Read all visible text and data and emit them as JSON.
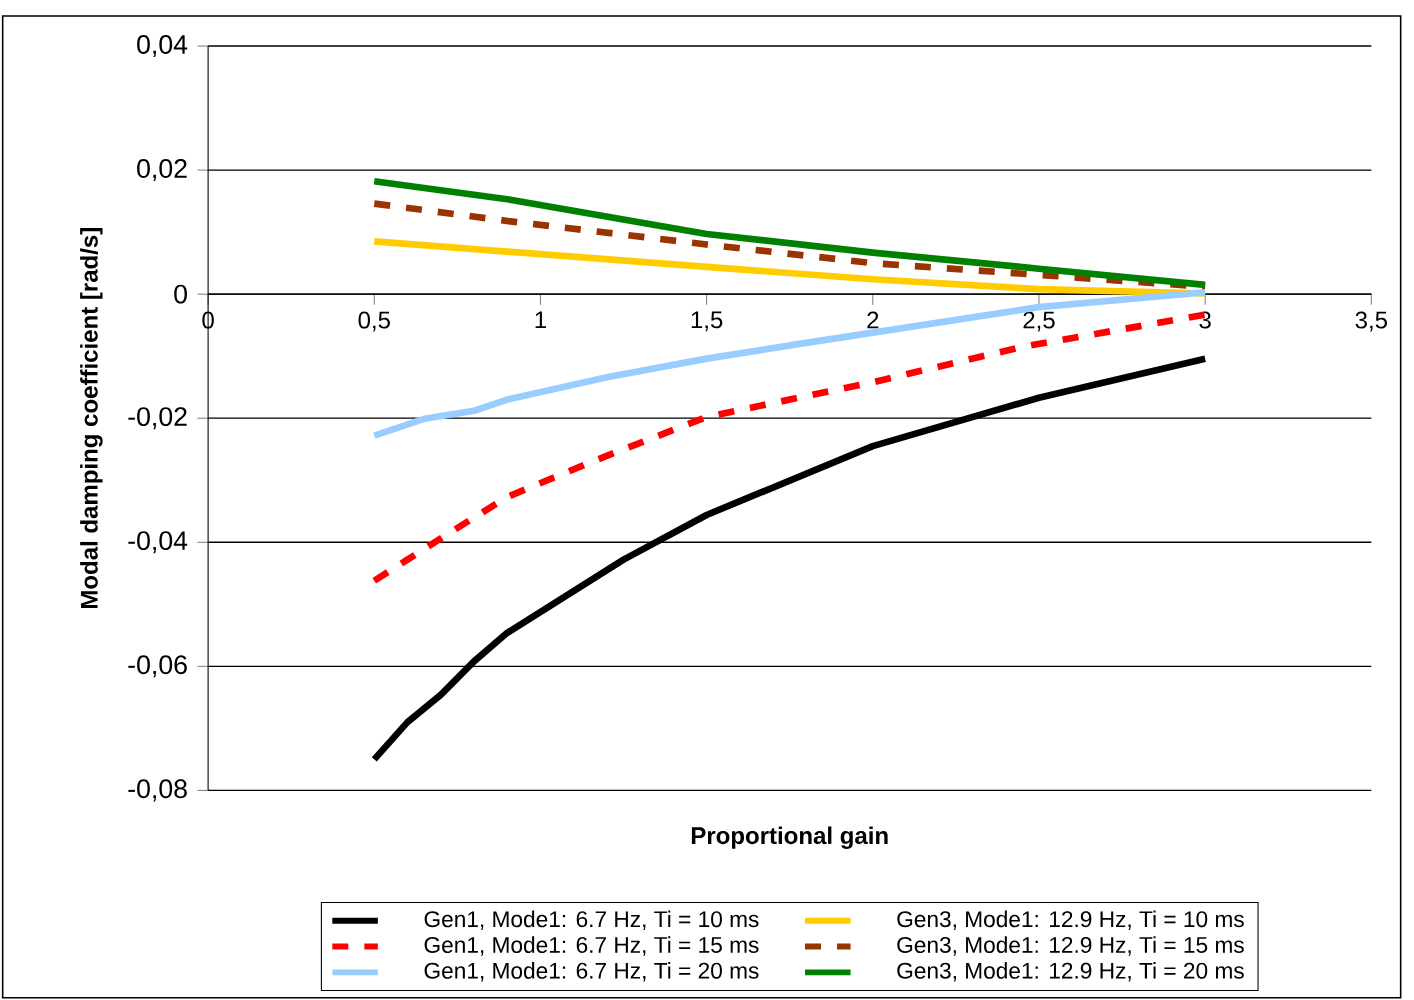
{
  "chart_data": {
    "type": "line",
    "xlabel": "Proportional gain",
    "ylabel": "Modal damping coefficient [rad/s]",
    "xlim": [
      0,
      3.5
    ],
    "ylim": [
      -0.08,
      0.04
    ],
    "xticks": [
      0,
      {
        "value": 0.5,
        "label": "0,5"
      },
      1,
      {
        "value": 1.5,
        "label": "1,5"
      },
      2,
      {
        "value": 2.5,
        "label": "2,5"
      },
      3,
      {
        "value": 3.5,
        "label": "3,5"
      }
    ],
    "yticks": [
      {
        "value": -0.08,
        "label": "-0,08"
      },
      {
        "value": -0.06,
        "label": "-0,06"
      },
      {
        "value": -0.04,
        "label": "-0,04"
      },
      {
        "value": -0.02,
        "label": "-0,02"
      },
      0,
      {
        "value": 0.02,
        "label": "0,02"
      },
      {
        "value": 0.04,
        "label": "0,04"
      }
    ],
    "grid": "y",
    "legend": "bottom",
    "marker": "none",
    "series": [
      {
        "name": "Gen1, Mode1: 6.7 Hz, Ti = 10 ms",
        "color": "#000000",
        "line_style": "solid",
        "x": [
          0.5,
          0.6,
          0.7,
          0.8,
          0.9,
          1.25,
          1.5,
          2,
          2.5,
          3
        ],
        "values": [
          -0.075,
          -0.069,
          -0.0646,
          -0.0592,
          -0.0546,
          -0.0428,
          -0.0356,
          -0.0245,
          -0.0167,
          -0.0104
        ]
      },
      {
        "name": "Gen1, Mode1: 6.7 Hz, Ti = 15 ms",
        "color": "#ff0000",
        "line_style": "dashed",
        "x": [
          0.5,
          0.6,
          0.72,
          0.9,
          1.16,
          1.5,
          2,
          2.45,
          3
        ],
        "values": [
          -0.0462,
          -0.0428,
          -0.0387,
          -0.0327,
          -0.0269,
          -0.0198,
          -0.0142,
          -0.0085,
          -0.0033
        ]
      },
      {
        "name": "Gen1, Mode1: 6.7 Hz, Ti = 20 ms",
        "color": "#99ccff",
        "line_style": "solid",
        "x": [
          0.5,
          0.65,
          0.8,
          0.9,
          1.2,
          1.5,
          1.77,
          2,
          2.5,
          3
        ],
        "values": [
          -0.0228,
          -0.0201,
          -0.0188,
          -0.017,
          -0.0134,
          -0.0104,
          -0.0081,
          -0.0062,
          -0.0021,
          0.0003
        ]
      },
      {
        "name": "Gen3, Mode1: 12.9 Hz, Ti = 10 ms",
        "color": "#ffcc00",
        "line_style": "solid",
        "x": [
          0.5,
          1.5,
          2,
          2.5,
          3
        ],
        "values": [
          0.0085,
          0.0044,
          0.0024,
          0.0008,
          0.0001
        ]
      },
      {
        "name": "Gen3, Mode1: 12.9 Hz, Ti = 15 ms",
        "color": "#993300",
        "line_style": "dashed",
        "x": [
          0.5,
          0.9,
          1.5,
          2,
          2.5,
          3
        ],
        "values": [
          0.0146,
          0.0118,
          0.008,
          0.005,
          0.0031,
          0.0012
        ]
      },
      {
        "name": "Gen3, Mode1: 12.9 Hz, Ti = 20 ms",
        "color": "#008000",
        "line_style": "solid",
        "x": [
          0.5,
          0.9,
          1.5,
          2,
          2.5,
          3
        ],
        "values": [
          0.0182,
          0.0153,
          0.0097,
          0.0067,
          0.0041,
          0.0015
        ]
      }
    ]
  }
}
